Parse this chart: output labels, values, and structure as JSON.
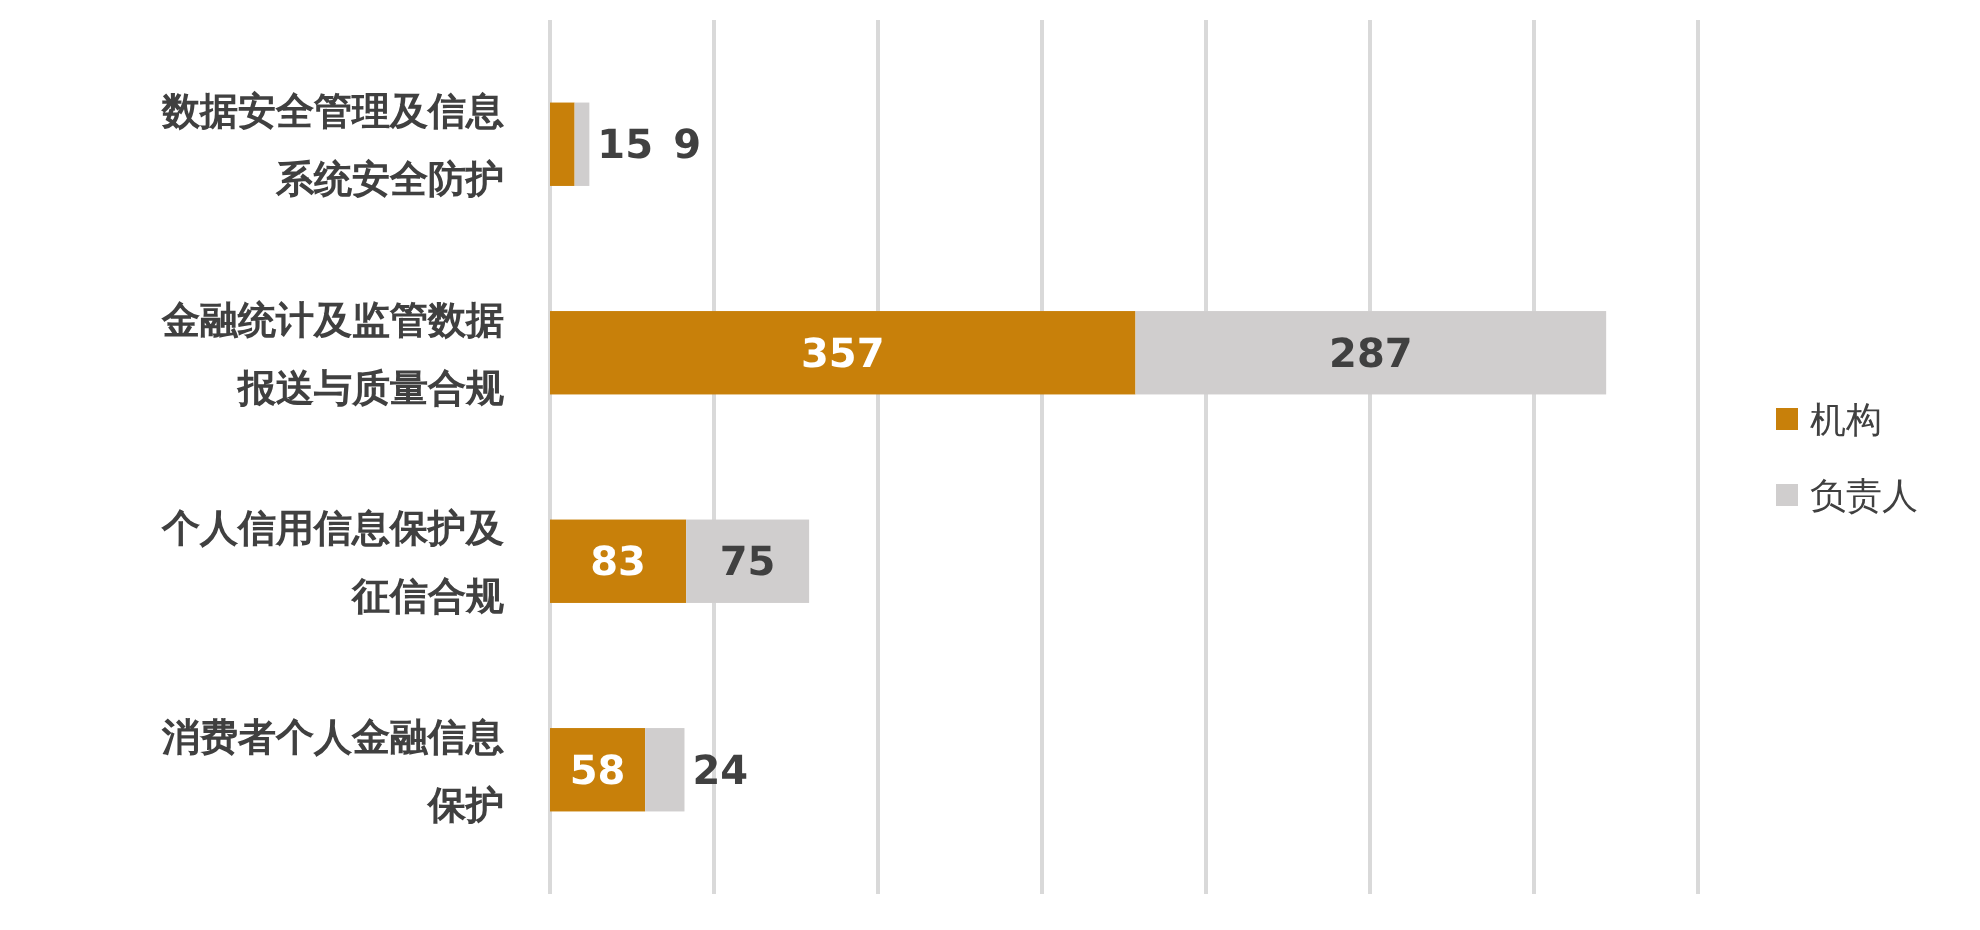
{
  "chart_data": {
    "type": "bar",
    "orientation": "horizontal",
    "stacked": true,
    "categories": [
      "数据安全管理及信息系统安全防护",
      "金融统计及监管数据报送与质量合规",
      "个人信用信息保护及征信合规",
      "消费者个人金融信息保护"
    ],
    "series": [
      {
        "name": "机构",
        "color": "#c8800a",
        "values": [
          15,
          357,
          83,
          58
        ]
      },
      {
        "name": "负责人",
        "color": "#d0cece",
        "values": [
          9,
          287,
          75,
          24
        ]
      }
    ],
    "xlim": [
      0,
      700
    ],
    "xticks": [
      {
        "value": 0,
        "label": null
      },
      {
        "value": 100,
        "label": null
      },
      {
        "value": 200,
        "label": null
      },
      {
        "value": 300,
        "label": null
      },
      {
        "value": 400,
        "label": null
      },
      {
        "value": 500,
        "label": null
      },
      {
        "value": 600,
        "label": null
      },
      {
        "value": 700,
        "label": null
      }
    ],
    "tick_labels": "y",
    "grid": "x",
    "legend": "right",
    "data_labels": true
  }
}
